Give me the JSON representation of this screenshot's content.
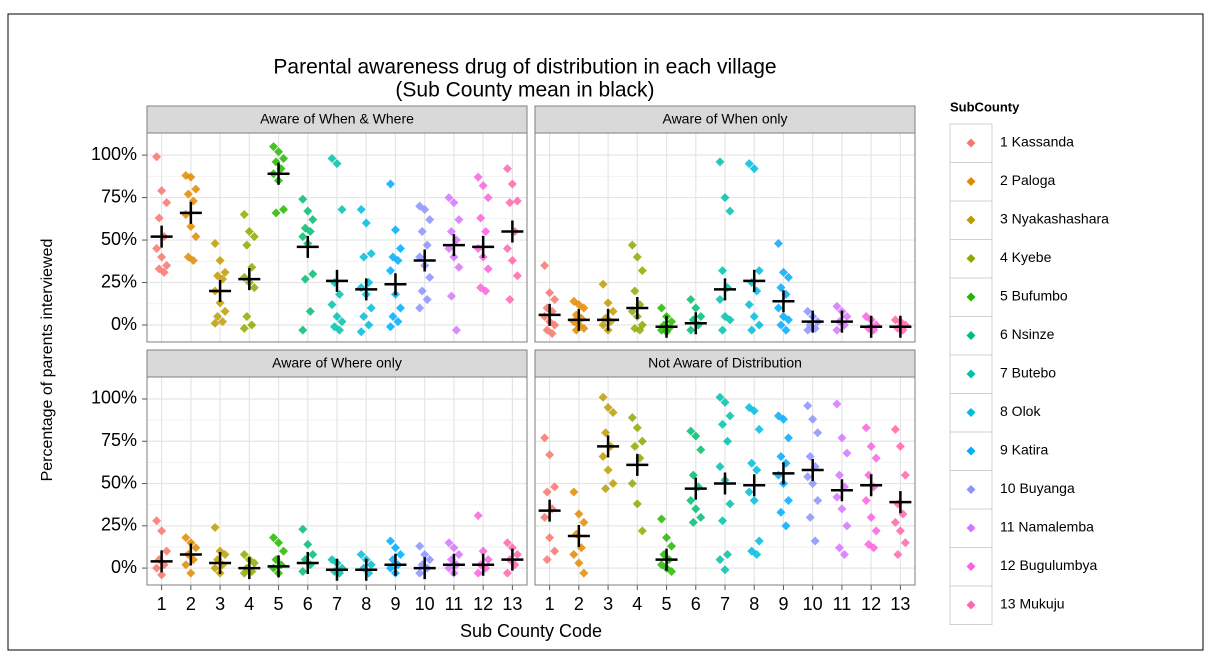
{
  "chart_data": {
    "type": "scatter",
    "title": "Parental awareness drug of distribution in each village",
    "subtitle": "(Sub County mean in black)",
    "x_label": "Sub County Code",
    "y_label": "Percentage of parents interviewed",
    "legend_title": "SubCounty",
    "legend_position": "right",
    "grid": true,
    "categories": [
      "1",
      "2",
      "3",
      "4",
      "5",
      "6",
      "7",
      "8",
      "9",
      "10",
      "11",
      "12",
      "13"
    ],
    "ylim": [
      -10,
      113
    ],
    "yticks": [
      {
        "value": 0,
        "label": "0%"
      },
      {
        "value": 25,
        "label": "25%"
      },
      {
        "value": 50,
        "label": "50%"
      },
      {
        "value": 75,
        "label": "75%"
      },
      {
        "value": 100,
        "label": "100%"
      }
    ],
    "mean_color": "#000000",
    "series": [
      {
        "name": "1 Kassanda",
        "color": "#F8766D"
      },
      {
        "name": "2 Paloga",
        "color": "#E18A00"
      },
      {
        "name": "3 Nyakashashara",
        "color": "#BE9C00"
      },
      {
        "name": "4 Kyebe",
        "color": "#8CAB00"
      },
      {
        "name": "5 Bufumbo",
        "color": "#24B700"
      },
      {
        "name": "6 Nsinze",
        "color": "#00BE70"
      },
      {
        "name": "7 Butebo",
        "color": "#00C1AB"
      },
      {
        "name": "8 Olok",
        "color": "#00BBDA"
      },
      {
        "name": "9 Katira",
        "color": "#00ACFC"
      },
      {
        "name": "10 Buyanga",
        "color": "#8B93FF"
      },
      {
        "name": "11 Namalemba",
        "color": "#D575FE"
      },
      {
        "name": "12 Bugulumbya",
        "color": "#F962DD"
      },
      {
        "name": "13 Mukuju",
        "color": "#FF65AC"
      }
    ],
    "panels": [
      {
        "title": "Aware of When & Where",
        "points": [
          [
            99,
            79,
            72,
            63,
            52,
            45,
            40,
            35,
            33,
            31
          ],
          [
            88,
            87,
            80,
            77,
            73,
            65,
            58,
            52,
            40,
            38
          ],
          [
            48,
            38,
            31,
            29,
            27,
            20,
            13,
            8,
            5,
            2,
            1
          ],
          [
            65,
            55,
            52,
            47,
            34,
            28,
            25,
            22,
            5,
            0,
            -2
          ],
          [
            105,
            102,
            98,
            96,
            92,
            89,
            85,
            68,
            66
          ],
          [
            74,
            67,
            62,
            57,
            55,
            52,
            48,
            30,
            27,
            8,
            -3
          ],
          [
            98,
            95,
            68,
            25,
            18,
            12,
            5,
            2,
            -1,
            -3
          ],
          [
            68,
            60,
            42,
            40,
            25,
            22,
            18,
            10,
            5,
            0,
            -4
          ],
          [
            83,
            56,
            45,
            40,
            38,
            32,
            18,
            10,
            5,
            2,
            -1
          ],
          [
            70,
            68,
            62,
            55,
            47,
            40,
            35,
            28,
            20,
            15,
            10
          ],
          [
            75,
            72,
            62,
            55,
            50,
            45,
            40,
            34,
            17,
            -3
          ],
          [
            87,
            82,
            75,
            63,
            55,
            45,
            40,
            33,
            22,
            20
          ],
          [
            92,
            83,
            73,
            72,
            55,
            45,
            38,
            29,
            15
          ]
        ],
        "means": [
          52,
          66,
          20,
          27,
          89,
          46,
          26,
          21,
          24,
          38,
          47,
          46,
          55
        ]
      },
      {
        "title": "Aware of When only",
        "points": [
          [
            35,
            19,
            15,
            10,
            8,
            5,
            2,
            0,
            -3,
            -5
          ],
          [
            14,
            12,
            10,
            6,
            4,
            2,
            0,
            -2,
            -3
          ],
          [
            24,
            13,
            8,
            4,
            2,
            0,
            -3
          ],
          [
            47,
            40,
            32,
            20,
            12,
            8,
            5,
            0,
            -2,
            -3
          ],
          [
            10,
            5,
            2,
            0,
            -2,
            -3,
            -4
          ],
          [
            15,
            10,
            5,
            3,
            0,
            -3
          ],
          [
            96,
            75,
            67,
            32,
            22,
            15,
            5,
            3,
            -3
          ],
          [
            95,
            92,
            32,
            25,
            20,
            12,
            5,
            0,
            -3
          ],
          [
            48,
            31,
            28,
            22,
            18,
            10,
            5,
            3,
            0,
            -3
          ],
          [
            8,
            5,
            2,
            0,
            -2,
            -3
          ],
          [
            11,
            8,
            5,
            2,
            0,
            -3
          ],
          [
            5,
            3,
            0,
            -2,
            -3
          ],
          [
            3,
            2,
            0,
            -2,
            -3
          ]
        ],
        "means": [
          6,
          3,
          3,
          10,
          -1,
          1,
          21,
          26,
          14,
          2,
          2,
          -1,
          -1
        ]
      },
      {
        "title": "Aware of Where only",
        "points": [
          [
            28,
            22,
            10,
            5,
            2,
            0,
            -4
          ],
          [
            18,
            15,
            12,
            8,
            5,
            2,
            -3
          ],
          [
            24,
            10,
            8,
            5,
            2,
            0,
            -3
          ],
          [
            8,
            5,
            3,
            0,
            -2,
            -3
          ],
          [
            18,
            15,
            10,
            5,
            2,
            0,
            -3
          ],
          [
            23,
            14,
            8,
            5,
            2,
            -2
          ],
          [
            5,
            3,
            0,
            -2,
            -3
          ],
          [
            8,
            5,
            2,
            0,
            -3
          ],
          [
            16,
            12,
            8,
            5,
            2,
            0,
            -3
          ],
          [
            13,
            8,
            5,
            2,
            0,
            -3
          ],
          [
            15,
            12,
            8,
            5,
            2,
            0,
            -3
          ],
          [
            31,
            10,
            5,
            2,
            0,
            -3
          ],
          [
            15,
            12,
            8,
            5,
            2,
            -3
          ]
        ],
        "means": [
          4,
          8,
          3,
          0,
          1,
          3,
          -1,
          -1,
          2,
          0,
          2,
          2,
          5
        ]
      },
      {
        "title": "Not Aware of Distribution",
        "points": [
          [
            77,
            67,
            48,
            45,
            35,
            30,
            18,
            10,
            5
          ],
          [
            45,
            32,
            27,
            20,
            12,
            8,
            3,
            -3
          ],
          [
            101,
            95,
            92,
            80,
            72,
            66,
            58,
            50,
            47
          ],
          [
            89,
            83,
            75,
            72,
            65,
            50,
            38,
            22
          ],
          [
            29,
            18,
            13,
            8,
            5,
            2,
            0,
            -2
          ],
          [
            81,
            78,
            70,
            55,
            48,
            40,
            35,
            30,
            27
          ],
          [
            101,
            98,
            90,
            85,
            75,
            60,
            52,
            38,
            28,
            8,
            5,
            -1
          ],
          [
            95,
            93,
            82,
            62,
            58,
            45,
            40,
            16,
            10,
            8
          ],
          [
            90,
            88,
            77,
            66,
            62,
            55,
            50,
            40,
            33,
            25
          ],
          [
            96,
            88,
            80,
            66,
            60,
            54,
            50,
            40,
            30,
            16
          ],
          [
            97,
            77,
            68,
            55,
            48,
            42,
            35,
            25,
            12,
            8
          ],
          [
            83,
            72,
            65,
            55,
            48,
            40,
            30,
            22,
            14,
            12
          ],
          [
            82,
            72,
            55,
            38,
            32,
            27,
            22,
            15,
            8
          ]
        ],
        "means": [
          34,
          19,
          72,
          61,
          5,
          47,
          50,
          49,
          56,
          58,
          46,
          49,
          39
        ]
      }
    ]
  }
}
